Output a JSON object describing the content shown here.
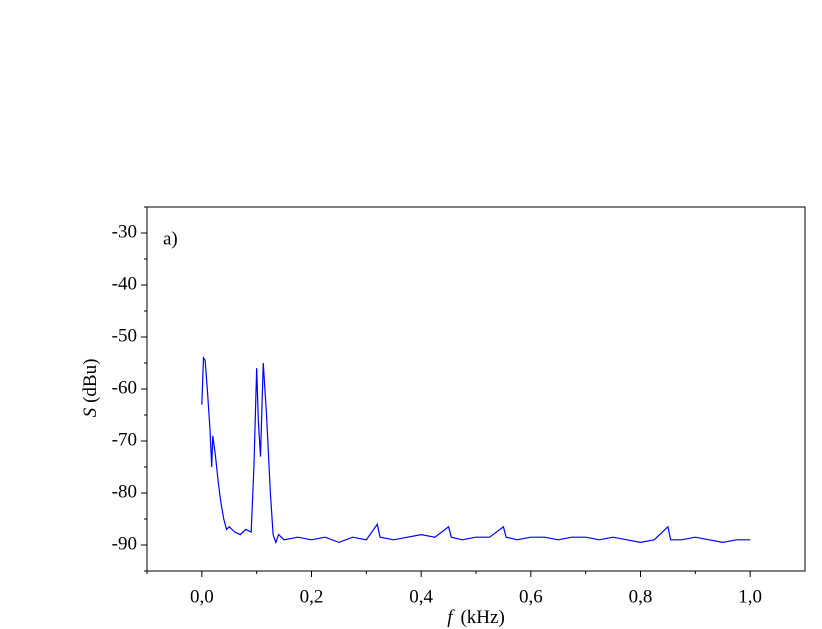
{
  "chart_data": {
    "type": "line",
    "annotation": "a)",
    "x_label_symbol": "f",
    "x_label_unit": "(kHz)",
    "y_label_symbol": "S",
    "y_label_unit": "(dBu)",
    "color": "#0000ff",
    "x": [
      0.0,
      0.003,
      0.006,
      0.01,
      0.015,
      0.018,
      0.02,
      0.025,
      0.03,
      0.035,
      0.04,
      0.045,
      0.05,
      0.06,
      0.07,
      0.08,
      0.09,
      0.095,
      0.1,
      0.103,
      0.107,
      0.112,
      0.118,
      0.125,
      0.13,
      0.135,
      0.14,
      0.15,
      0.175,
      0.2,
      0.225,
      0.25,
      0.275,
      0.3,
      0.32,
      0.325,
      0.35,
      0.375,
      0.4,
      0.425,
      0.45,
      0.455,
      0.475,
      0.5,
      0.525,
      0.55,
      0.555,
      0.575,
      0.6,
      0.625,
      0.65,
      0.675,
      0.7,
      0.725,
      0.75,
      0.775,
      0.8,
      0.825,
      0.85,
      0.855,
      0.875,
      0.9,
      0.925,
      0.95,
      0.975,
      1.0
    ],
    "values": [
      -63,
      -54,
      -54.5,
      -60,
      -68,
      -75,
      -69,
      -73,
      -78,
      -82,
      -85,
      -87,
      -86.5,
      -87.5,
      -88,
      -87,
      -87.5,
      -75,
      -56,
      -66,
      -73,
      -55,
      -65,
      -80,
      -88,
      -89.5,
      -88,
      -89,
      -88.5,
      -89,
      -88.5,
      -89.5,
      -88.5,
      -89,
      -86,
      -88.5,
      -89,
      -88.5,
      -88,
      -88.5,
      -86.5,
      -88.5,
      -89,
      -88.5,
      -88.5,
      -86.5,
      -88.5,
      -89,
      -88.5,
      -88.5,
      -89,
      -88.5,
      -88.5,
      -89,
      -88.5,
      -89,
      -89.5,
      -89,
      -86.5,
      -89,
      -89,
      -88.5,
      -89,
      -89.5,
      -89,
      -89
    ],
    "xlim": [
      -0.1,
      1.1
    ],
    "xticks": [
      {
        "value": 0,
        "label": "0,0"
      },
      {
        "value": 0.2,
        "label": "0,2"
      },
      {
        "value": 0.4,
        "label": "0,4"
      },
      {
        "value": 0.6,
        "label": "0,6"
      },
      {
        "value": 0.8,
        "label": "0,8"
      },
      {
        "value": 1.0,
        "label": "1,0"
      }
    ],
    "xminorticks": [
      -0.1,
      0.1,
      0.3,
      0.5,
      0.7,
      0.9
    ],
    "ylim": [
      -95,
      -25
    ],
    "yticks": [
      -90,
      -80,
      -70,
      -60,
      -50,
      -40,
      -30
    ],
    "yminorticks": [
      -95,
      -85,
      -75,
      -65,
      -55,
      -45,
      -35,
      -25
    ]
  }
}
